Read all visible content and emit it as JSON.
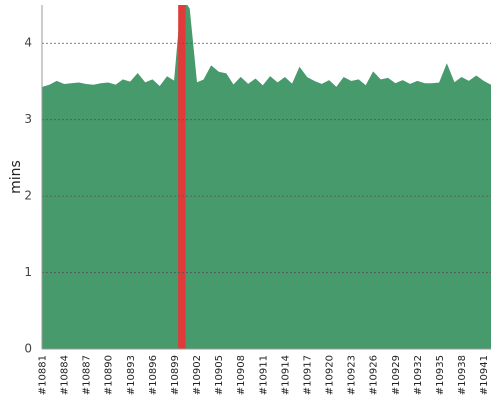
{
  "chart_data": {
    "type": "area",
    "y_label": "mins",
    "categories": [
      "#10881",
      null,
      null,
      "#10884",
      null,
      null,
      "#10887",
      null,
      null,
      "#10890",
      null,
      null,
      "#10893",
      null,
      null,
      "#10896",
      null,
      null,
      "#10899",
      null,
      null,
      "#10902",
      null,
      null,
      "#10905",
      null,
      null,
      "#10908",
      null,
      null,
      "#10911",
      null,
      null,
      "#10914",
      null,
      null,
      "#10917",
      null,
      null,
      "#10920",
      null,
      null,
      "#10923",
      null,
      null,
      "#10926",
      null,
      null,
      "#10929",
      null,
      null,
      "#10932",
      null,
      null,
      "#10935",
      null,
      null,
      "#10938",
      null,
      null,
      "#10941",
      null
    ],
    "series": [
      {
        "color": "#469a6c",
        "values": [
          3.42,
          3.45,
          3.5,
          3.46,
          3.47,
          3.48,
          3.46,
          3.45,
          3.47,
          3.48,
          3.45,
          3.52,
          3.49,
          3.6,
          3.48,
          3.52,
          3.43,
          3.56,
          3.5,
          4.6,
          4.45,
          3.48,
          3.52,
          3.7,
          3.62,
          3.6,
          3.45,
          3.55,
          3.46,
          3.53,
          3.44,
          3.56,
          3.48,
          3.55,
          3.46,
          3.68,
          3.55,
          3.5,
          3.46,
          3.51,
          3.42,
          3.55,
          3.5,
          3.52,
          3.44,
          3.62,
          3.52,
          3.54,
          3.47,
          3.51,
          3.46,
          3.5,
          3.47,
          3.47,
          3.48,
          3.72,
          3.48,
          3.55,
          3.5,
          3.57,
          3.5,
          3.45
        ]
      },
      {
        "color": "#e03a3a",
        "values": [
          null,
          null,
          null,
          null,
          null,
          null,
          null,
          null,
          null,
          null,
          null,
          null,
          null,
          null,
          null,
          null,
          null,
          null,
          null,
          4.6,
          null,
          null,
          null,
          null,
          null,
          null,
          null,
          null,
          null,
          null,
          null,
          null,
          null,
          null,
          null,
          null,
          null,
          null,
          null,
          null,
          null,
          null,
          null,
          null,
          null,
          null,
          null,
          null,
          null,
          null,
          null,
          null,
          null,
          null,
          null,
          null,
          null,
          null,
          null,
          null,
          null,
          null
        ]
      }
    ],
    "ylim": [
      0,
      4.5
    ],
    "yticks": [
      0,
      1,
      2,
      3,
      4
    ],
    "grid": true
  }
}
